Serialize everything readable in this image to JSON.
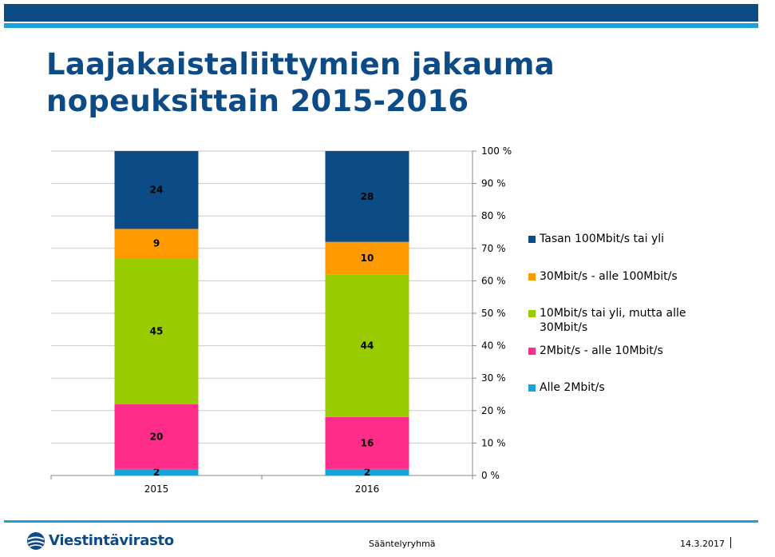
{
  "slide": {
    "title_line1": "Laajakaistaliittymien jakauma",
    "title_line2": "nopeuksittain 2015-2016"
  },
  "chart_data": {
    "type": "bar",
    "stacked": true,
    "categories": [
      "2015",
      "2016"
    ],
    "series": [
      {
        "name": "Alle 2Mbit/s",
        "values": [
          2,
          2
        ],
        "color": "#1aa3d9"
      },
      {
        "name": "2Mbit/s - alle 10Mbit/s",
        "values": [
          20,
          16
        ],
        "color": "#ff2d8a"
      },
      {
        "name": "10Mbit/s tai yli, mutta alle 30Mbit/s",
        "values": [
          45,
          44
        ],
        "color": "#99cc00"
      },
      {
        "name": "30Mbit/s - alle 100Mbit/s",
        "values": [
          9,
          10
        ],
        "color": "#ff9900"
      },
      {
        "name": "Tasan 100Mbit/s tai yli",
        "values": [
          24,
          28
        ],
        "color": "#0d4b86"
      }
    ],
    "legend_order": [
      4,
      3,
      2,
      1,
      0
    ],
    "y_ticks": [
      "0 %",
      "10 %",
      "20 %",
      "30 %",
      "40 %",
      "50 %",
      "60 %",
      "70 %",
      "80 %",
      "90 %",
      "100 %"
    ],
    "ylim": [
      0,
      100
    ],
    "y_axis_side": "right",
    "grid": true,
    "legend_position": "right",
    "title": "",
    "xlabel": "",
    "ylabel": ""
  },
  "footer": {
    "logo_text": "Viestintävirasto",
    "center_text": "Sääntelyryhmä",
    "date": "14.3.2017"
  }
}
